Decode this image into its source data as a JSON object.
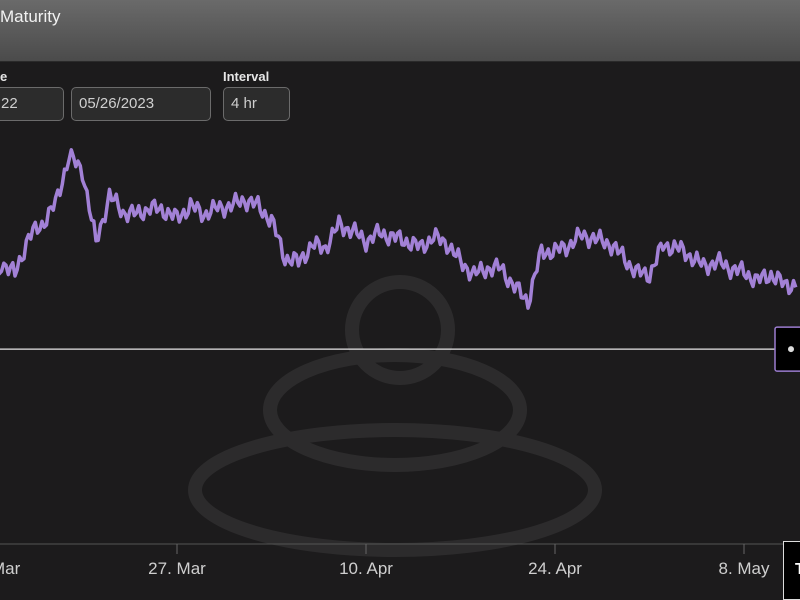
{
  "header": {
    "title": "Maturity"
  },
  "controls": {
    "start_label": "e",
    "start_value": "22",
    "end_value": "05/26/2023",
    "interval_label": "Interval",
    "interval_value": "4 hr"
  },
  "bottom_tooltip": {
    "text": "T"
  },
  "colors": {
    "line": "#a281d6",
    "background": "#1c1b1c",
    "header": "#5b5b5b",
    "reference_line": "#e6e6e6",
    "marker_border": "#9b7ccf"
  },
  "chart_data": {
    "type": "line",
    "title": "",
    "xlabel": "",
    "ylabel": "",
    "x_ticks": [
      "Mar",
      "27. Mar",
      "10. Apr",
      "24. Apr",
      "8. May"
    ],
    "x_tick_dates": [
      "2023-03-13",
      "2023-03-27",
      "2023-04-10",
      "2023-04-24",
      "2023-05-08"
    ],
    "x_range": [
      "2023-03-13",
      "2023-05-11"
    ],
    "y_range": [
      -100,
      100
    ],
    "grid": false,
    "legend": "none",
    "reference_level": -8,
    "series": [
      {
        "name": "",
        "x": [
          "2023-03-13",
          "2023-03-14",
          "2023-03-15",
          "2023-03-16",
          "2023-03-17",
          "2023-03-18",
          "2023-03-19",
          "2023-03-20",
          "2023-03-21",
          "2023-03-22",
          "2023-03-23",
          "2023-03-24",
          "2023-03-25",
          "2023-03-26",
          "2023-03-27",
          "2023-03-28",
          "2023-03-29",
          "2023-03-30",
          "2023-03-31",
          "2023-04-01",
          "2023-04-02",
          "2023-04-03",
          "2023-04-04",
          "2023-04-05",
          "2023-04-06",
          "2023-04-07",
          "2023-04-08",
          "2023-04-09",
          "2023-04-10",
          "2023-04-11",
          "2023-04-12",
          "2023-04-13",
          "2023-04-14",
          "2023-04-15",
          "2023-04-16",
          "2023-04-17",
          "2023-04-18",
          "2023-04-19",
          "2023-04-20",
          "2023-04-21",
          "2023-04-22",
          "2023-04-23",
          "2023-04-24",
          "2023-04-25",
          "2023-04-26",
          "2023-04-27",
          "2023-04-28",
          "2023-04-29",
          "2023-04-30",
          "2023-05-01",
          "2023-05-02",
          "2023-05-03",
          "2023-05-04",
          "2023-05-05",
          "2023-05-06",
          "2023-05-07",
          "2023-05-08",
          "2023-05-09",
          "2023-05-10",
          "2023-05-11"
        ],
        "values": [
          5,
          34,
          28,
          46,
          52,
          62,
          85,
          78,
          43,
          66,
          58,
          57,
          60,
          59,
          55,
          61,
          57,
          60,
          61,
          64,
          61,
          54,
          36,
          34,
          42,
          41,
          52,
          49,
          44,
          48,
          46,
          44,
          41,
          46,
          43,
          34,
          28,
          31,
          31,
          22,
          15,
          39,
          39,
          42,
          47,
          45,
          43,
          37,
          29,
          28,
          42,
          41,
          37,
          32,
          34,
          31,
          29,
          25,
          28,
          23
        ]
      }
    ]
  }
}
